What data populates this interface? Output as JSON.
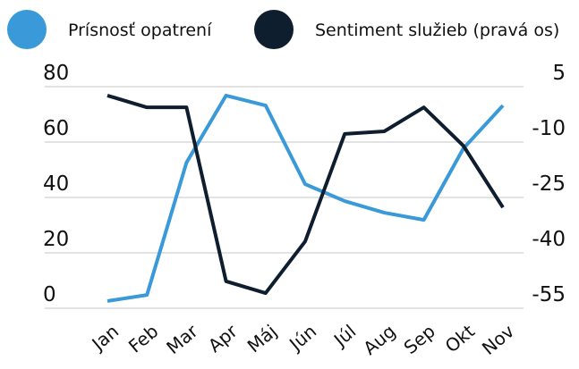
{
  "chart_data": {
    "type": "line",
    "categories": [
      "Jan",
      "Feb",
      "Mar",
      "Apr",
      "Máj",
      "Jún",
      "Júl",
      "Aug",
      "Sep",
      "Okt",
      "Nov"
    ],
    "series": [
      {
        "name": "Prísnosť opatrení",
        "color": "#3a9ad9",
        "values": [
          2.6,
          4.8,
          52.6,
          76.8,
          73.2,
          44.8,
          38.7,
          34.5,
          31.9,
          57.7,
          73.2
        ]
      },
      {
        "name": "Sentiment služieb (pravá os)",
        "color": "#0f1e2e",
        "axis": "y2",
        "values": [
          2.6,
          -0.6,
          -0.6,
          -47.7,
          -50.9,
          -36.9,
          -7.8,
          -7.1,
          -0.6,
          -11,
          -27.7
        ]
      }
    ],
    "ylim": [
      0,
      80
    ],
    "yticks": [
      0,
      20,
      40,
      60,
      80
    ],
    "y2lim": [
      -55,
      5
    ],
    "y2ticks": [
      -55,
      -40,
      -25,
      -10,
      5
    ],
    "grid": true,
    "legend": "top"
  }
}
